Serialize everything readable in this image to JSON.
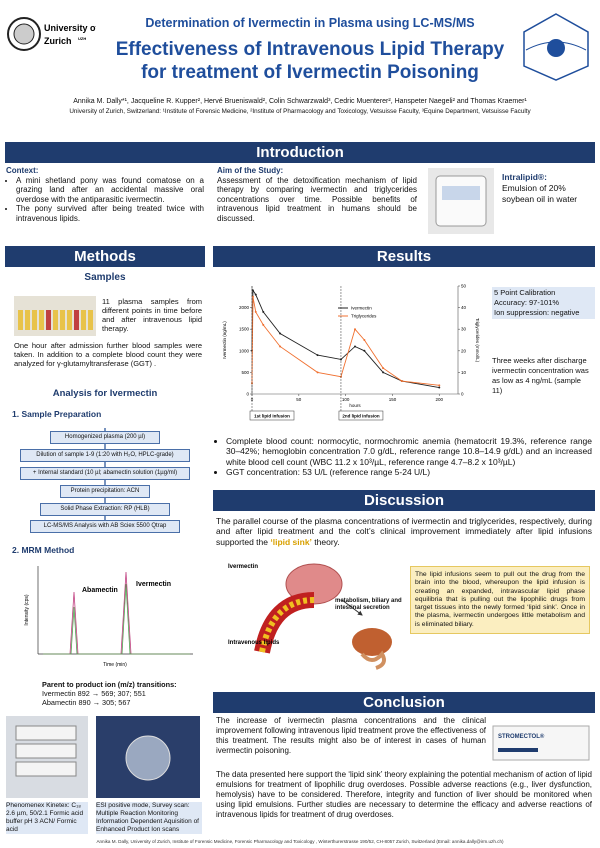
{
  "header": {
    "logo_text": [
      "University of",
      "Zurich"
    ],
    "logo_tag": "UZH",
    "subtitle": "Determination of Ivermectin in Plasma using LC-MS/MS",
    "title": [
      "Effectiveness of Intravenous Lipid Therapy",
      "for treatment of Ivermectin Poisoning"
    ],
    "authors": "Annika M. Dally*¹, Jacqueline R. Kupper², Hervé Brueniswald², Colin Schwarzwald³, Cedric Muenterer², Hanspeter Naegeli² and Thomas Kraemer¹",
    "affiliations": "University of Zurich, Switzerland: ¹Institute of Forensic Medicine, ²Institute of Pharmacology and Toxicology, Vetsuisse Faculty, ³Equine Department, Vetsuisse Faculty"
  },
  "intro": {
    "heading": "Introduction",
    "context": {
      "heading": "Context:",
      "bullets": [
        "A mini shetland pony was found comatose on a grazing land after an accidental massive oral overdose with the antiparasitic ivermectin.",
        "The pony survived after being treated twice with intravenous lipids."
      ]
    },
    "aim": {
      "heading": "Aim of the Study:",
      "text": "Assessment of the detoxification mechanism of lipid therapy by comparing ivermectin and triglycerides concentrations over time. Possible benefits of intravenous lipid treatment in humans should be discussed."
    },
    "product": {
      "name": "Intralipid®:",
      "text": "Emulsion of 20% soybean oil in water"
    }
  },
  "methods": {
    "heading": "Methods",
    "samples_heading": "Samples",
    "samples_text": "11 plasma samples from different points in time before and after intravenous lipid therapy.",
    "samples_text2": "One hour after admission further blood samples were taken. In addition to a complete blood count they were analyzed for γ-glutamyltransferase (GGT) .",
    "analysis_heading": "Analysis for Ivermectin",
    "prep_heading": "1. Sample Preparation",
    "steps": [
      "Homogenized plasma (200 µl)",
      "Dilution of sample 1-9 (1:20 with H₂O, HPLC-grade)",
      "+ Internal standard (10 µl; abamectin solution (1µg/ml)",
      "Protein precipitation: ACN",
      "Solid Phase Extraction: RP (HLB)",
      "LC-MS/MS Analysis with AB Sciex 5500 Qtrap"
    ],
    "mrm_heading": "2. MRM Method",
    "chromatogram": {
      "peaks": [
        "Abamectin",
        "Ivermectin"
      ],
      "y_label": "Intensity (cps)",
      "x_label": "Time (min)"
    },
    "transitions_heading": "Parent to product ion (m/z) transitions:",
    "transitions": [
      "Ivermectin 892 → 569; 307; 551",
      "Abamectin 890 → 305; 567"
    ],
    "captions": [
      "Phenomenex Kinetex: C₁₈ 2.6 µm, 50/2.1 Formic acid buffer pH 3 ACN/ Formic acid",
      "ESI positive mode, Survey scan: Multiple Reaction Monitoring Information Dependent Aquisition of Enhanced Product Ion scans"
    ]
  },
  "results": {
    "heading": "Results",
    "chart": {
      "type": "line",
      "x_label": "hours",
      "y_label": "Ivermectin (ng/mL)",
      "y2_label": "Triglycerides (mmol/L)",
      "x": [
        0,
        1,
        4,
        12,
        30,
        70,
        95,
        110,
        120,
        140,
        160,
        200
      ],
      "xlim": [
        0,
        220
      ],
      "xticks": [
        0,
        50,
        100,
        150,
        200
      ],
      "ylim": [
        0,
        2500
      ],
      "yticks": [
        0,
        500,
        1000,
        1500,
        2000
      ],
      "y2lim": [
        0,
        50
      ],
      "y2ticks": [
        0,
        10,
        20,
        30,
        40,
        50
      ],
      "series": [
        {
          "name": "Ivermectin",
          "color": "#222222",
          "values": [
            1000,
            2400,
            2300,
            1900,
            1400,
            900,
            800,
            1100,
            1000,
            500,
            300,
            150
          ]
        },
        {
          "name": "Triglycerides",
          "color": "#f07030",
          "axis": "y2",
          "values": [
            5,
            45,
            38,
            32,
            22,
            10,
            8,
            30,
            25,
            12,
            6,
            4
          ]
        }
      ],
      "annotations": [
        "1st lipid infusion",
        "2nd lipid infusion"
      ]
    },
    "calibration": [
      "5 Point Calibration",
      "Accuracy: 97-101%",
      "Ion suppression: negative"
    ],
    "followup": "Three weeks after discharge ivermectin concentration was as low as 4 ng/mL (sample 11)",
    "bullets": [
      "Complete blood count: normocytic, normochromic anemia (hematocrit 19.3%, reference range 30–42%; hemoglobin concentration 7.0 g/dL, reference range 10.8–14.9 g/dL) and an increased white blood cell count (WBC 11.2 x 10³/µL, reference range 4.7–8.2 x 10³/µL)",
      "GGT concentration: 53 U/L (reference range 5-24 U/L)"
    ]
  },
  "discussion": {
    "heading": "Discussion",
    "text_before": "The parallel course of the plasma concentrations of ivermectin and triglycerides, respectively, during and after lipid treatment and the colt’s clinical improvement immediately after lipid infusions supported the ",
    "highlight": "‘lipid sink’",
    "text_after": " theory.",
    "diagram_labels": [
      "Ivermectin",
      "Intravenous lipids",
      "metabolism, biliary and intestinal secretion"
    ],
    "box_text": "The lipid infusions seem to pull out the drug from the brain into the blood, whereupon the lipid infusion is creating an expanded, intravascular lipid phase equilibria that is pulling out the lipophilic drugs from target tissues into the newly formed ‘lipid sink’. Once in the plasma, ivermectin undergoes little metabolism and is eliminated biliary."
  },
  "conclusion": {
    "heading": "Conclusion",
    "p1": "The increase of ivermectin plasma concentrations and the clinical improvement following intravenous lipid treatment prove the effectiveness of this treatment. The results might also be of interest in cases of human ivermectin poisoning.",
    "packaging_text": "STROMECTOL®",
    "p2": "The data presented here support the ‘lipid sink’ theory explaining the potential mechanism of action of lipid emulsions for treatment of lipophilic drug overdoses. Possible adverse reactions (e.g., liver dysfunction, hemolysis) have to be considered. Therefore, integrity and function of liver should be monitored when using lipid emulsions. Further studies are necessary to determine the efficacy and adverse reactions of intravenous lipids for treatment of drug overdoses."
  },
  "footer": "Annika M. Dally, University of Zurich, Institute of Forensic Medicine, Forensic Pharmacology and Toxicology , Winterthurerstrasse 190/52, CH-8057 Zurich, Switzerland (Email: annika.dally@irm.uzh.ch)"
}
